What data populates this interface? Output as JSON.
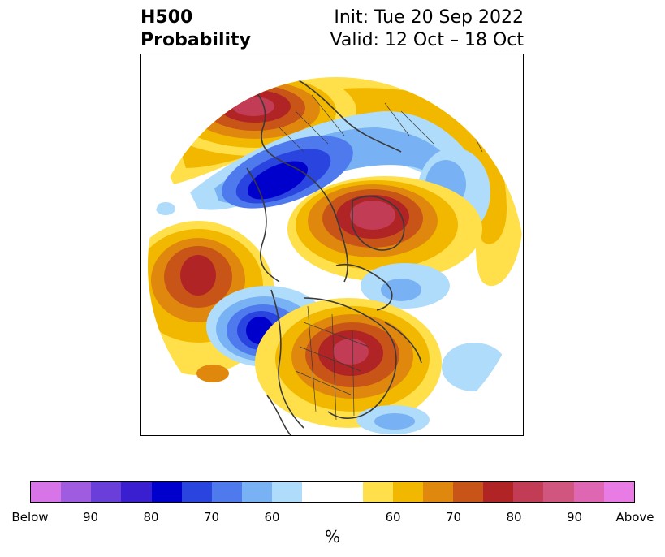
{
  "header": {
    "title_line1": "H500",
    "title_line2": "Probability",
    "init_text": "Init: Tue 20 Sep 2022",
    "valid_text": "Valid: 12 Oct – 18 Oct"
  },
  "colorbar": {
    "segments": [
      {
        "color": "#d674e8"
      },
      {
        "color": "#a05ce0"
      },
      {
        "color": "#6a3ed8"
      },
      {
        "color": "#3a1fd0"
      },
      {
        "color": "#0000cc"
      },
      {
        "color": "#2a44e0"
      },
      {
        "color": "#4e7aee"
      },
      {
        "color": "#78b2f4"
      },
      {
        "color": "#aedcfa"
      },
      {
        "color": "#ffffff"
      },
      {
        "color": "#ffffff"
      },
      {
        "color": "#ffe04a"
      },
      {
        "color": "#f2b800"
      },
      {
        "color": "#e0880e"
      },
      {
        "color": "#c85418"
      },
      {
        "color": "#b02426"
      },
      {
        "color": "#c23c56"
      },
      {
        "color": "#d05680"
      },
      {
        "color": "#de66b2"
      },
      {
        "color": "#e87ce4"
      }
    ],
    "tick_labels": [
      "Below",
      "90",
      "80",
      "70",
      "60",
      "60",
      "70",
      "80",
      "90",
      "Above"
    ],
    "unit_label": "%"
  },
  "map": {
    "colors": {
      "yellow": "#ffe04a",
      "gold": "#f2b800",
      "orange": "#e0880e",
      "darkorange": "#c85418",
      "red": "#b02426",
      "crimson": "#c23c56",
      "pink": "#d05680",
      "lightblue": "#aedcfa",
      "midblue": "#78b2f4",
      "blue": "#4e7aee",
      "royal": "#2a44e0",
      "deepblue": "#0000cc",
      "coast": "#3a3a3a"
    }
  }
}
